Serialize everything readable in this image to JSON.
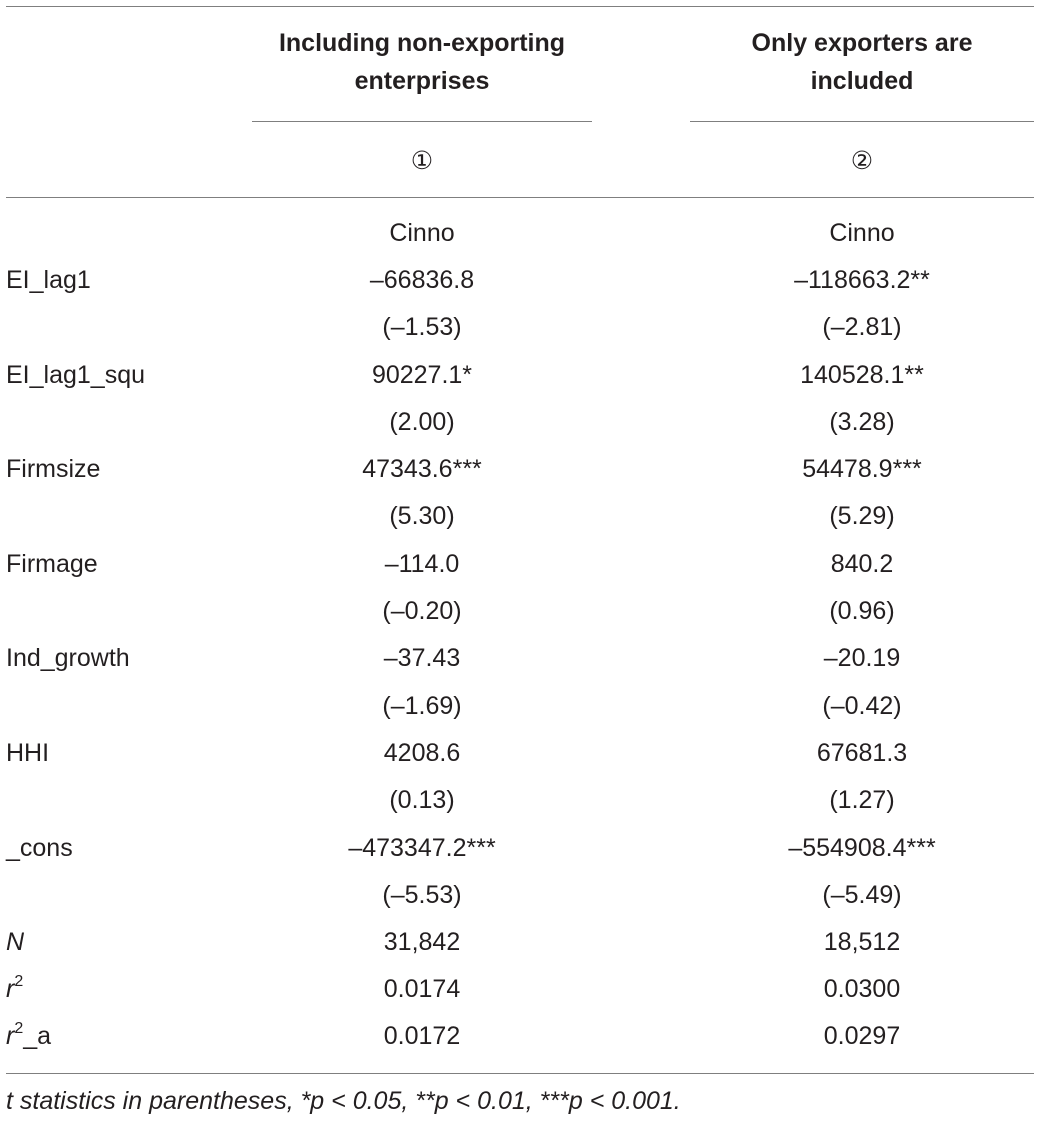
{
  "header": {
    "col1_title": "Including non-exporting enterprises",
    "col2_title": "Only exporters are included",
    "col1_number": "①",
    "col2_number": "②"
  },
  "dependent_row": {
    "label": "",
    "col1": "Cinno",
    "col2": "Cinno"
  },
  "rows": [
    {
      "label": "EI_lag1",
      "col1": "–66836.8",
      "col2": "–118663.2**"
    },
    {
      "label": "",
      "col1": "(–1.53)",
      "col2": "(–2.81)"
    },
    {
      "label": "EI_lag1_squ",
      "col1": "90227.1*",
      "col2": "140528.1**"
    },
    {
      "label": "",
      "col1": "(2.00)",
      "col2": "(3.28)"
    },
    {
      "label": "Firmsize",
      "col1": "47343.6***",
      "col2": "54478.9***"
    },
    {
      "label": "",
      "col1": "(5.30)",
      "col2": "(5.29)"
    },
    {
      "label": "Firmage",
      "col1": "–114.0",
      "col2": "840.2"
    },
    {
      "label": "",
      "col1": "(–0.20)",
      "col2": "(0.96)"
    },
    {
      "label": "Ind_growth",
      "col1": "–37.43",
      "col2": "–20.19"
    },
    {
      "label": "",
      "col1": "(–1.69)",
      "col2": "(–0.42)"
    },
    {
      "label": "HHI",
      "col1": "4208.6",
      "col2": "67681.3"
    },
    {
      "label": "",
      "col1": "(0.13)",
      "col2": "(1.27)"
    },
    {
      "label": "_cons",
      "col1": "–473347.2***",
      "col2": "–554908.4***"
    },
    {
      "label": "",
      "col1": "(–5.53)",
      "col2": "(–5.49)"
    }
  ],
  "stats": {
    "n": {
      "label": "N",
      "col1": "31,842",
      "col2": "18,512"
    },
    "r2": {
      "label": "r",
      "sup": "2",
      "suffix": "",
      "col1": "0.0174",
      "col2": "0.0300"
    },
    "r2a": {
      "label": "r",
      "sup": "2",
      "suffix": "_a",
      "col1": "0.0172",
      "col2": "0.0297"
    }
  },
  "footnote": "t statistics in parentheses, *p < 0.05, **p < 0.01, ***p < 0.001."
}
